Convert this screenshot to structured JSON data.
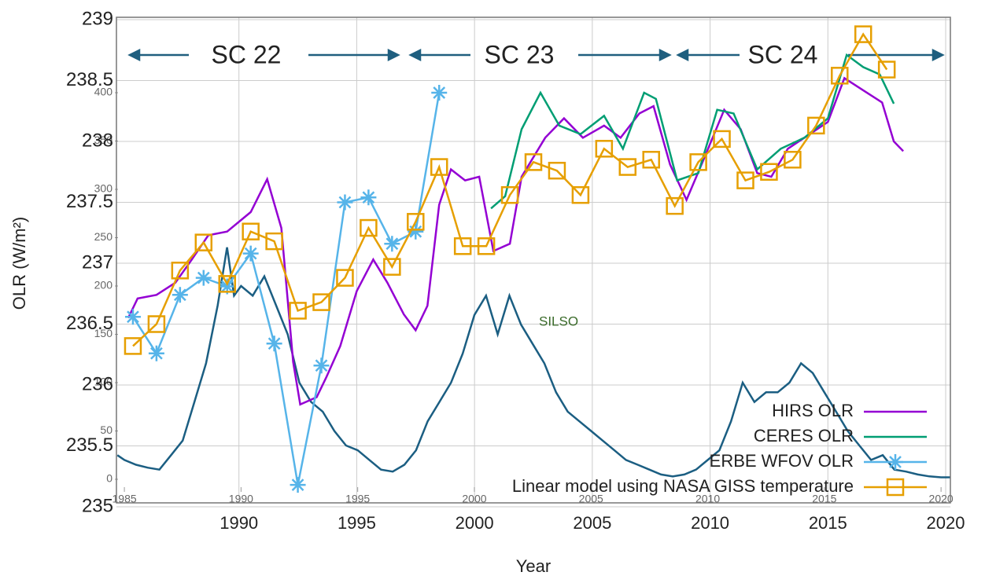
{
  "chart_data": [
    {
      "type": "line",
      "x_label": "Year",
      "y_label": "OLR (W/m²)",
      "xlim": [
        1984.8,
        2020.2
      ],
      "xticks": [
        1990,
        1995,
        2000,
        2005,
        2010,
        2015,
        2020
      ],
      "ylim": [
        235,
        239
      ],
      "yticks": [
        235,
        235.5,
        236,
        236.5,
        237,
        237.5,
        238,
        238.5,
        239
      ],
      "grid": true,
      "legend": "lower right",
      "annotations": [
        "SC 22",
        "SC 23",
        "SC 24"
      ],
      "series": [
        {
          "name": "HIRS OLR",
          "color": "#9400d3",
          "marker": "none",
          "x": [
            1985.3,
            1985.7,
            1986.5,
            1987.3,
            1988,
            1988.7,
            1989.5,
            1990.5,
            1991.2,
            1991.8,
            1992.3,
            1992.6,
            1993.3,
            1993.7,
            1994.3,
            1995,
            1995.7,
            1996.3,
            1997,
            1997.5,
            1998,
            1998.5,
            1999,
            1999.6,
            2000.2,
            2000.8,
            2001.5,
            2002,
            2003,
            2003.8,
            2004.6,
            2005.5,
            2006.2,
            2007,
            2007.6,
            2008.3,
            2009,
            2009.7,
            2010.6,
            2011.3,
            2012,
            2012.6,
            2013.3,
            2014,
            2015,
            2015.7,
            2016.5,
            2017.3,
            2017.8,
            2018.2
          ],
          "values": [
            236.55,
            236.71,
            236.74,
            236.84,
            237.03,
            237.23,
            237.26,
            237.42,
            237.69,
            237.29,
            236.19,
            235.84,
            235.9,
            236.06,
            236.32,
            236.77,
            237.03,
            236.84,
            236.58,
            236.45,
            236.65,
            237.48,
            237.77,
            237.68,
            237.71,
            237.1,
            237.16,
            237.71,
            238.03,
            238.19,
            238.03,
            238.13,
            238.03,
            238.23,
            238.29,
            237.81,
            237.52,
            237.84,
            238.26,
            238.1,
            237.74,
            237.71,
            237.94,
            238.03,
            238.16,
            238.52,
            238.42,
            238.32,
            238.0,
            237.92
          ]
        },
        {
          "name": "CERES OLR",
          "color": "#009e73",
          "marker": "none",
          "x": [
            2000.7,
            2001.3,
            2002,
            2002.8,
            2003.6,
            2004.5,
            2005.5,
            2006.3,
            2007.2,
            2007.7,
            2008.6,
            2009.5,
            2010.3,
            2011,
            2012,
            2013,
            2014,
            2015,
            2015.8,
            2016.5,
            2017.2,
            2017.8
          ],
          "values": [
            237.45,
            237.55,
            238.1,
            238.4,
            238.13,
            238.06,
            238.21,
            237.94,
            238.4,
            238.35,
            237.68,
            237.74,
            238.26,
            238.23,
            237.77,
            237.94,
            238.03,
            238.19,
            238.71,
            238.61,
            238.55,
            238.31
          ]
        },
        {
          "name": "ERBE WFOV OLR",
          "color": "#56b4e9",
          "marker": "star",
          "x": [
            1985.5,
            1986.5,
            1987.5,
            1988.5,
            1989.5,
            1990.5,
            1991.5,
            1992.5,
            1993.5,
            1994.5,
            1995.5,
            1996.5,
            1997.5,
            1998.5
          ],
          "values": [
            236.56,
            236.26,
            236.74,
            236.88,
            236.81,
            237.08,
            236.34,
            235.18,
            236.16,
            237.5,
            237.54,
            237.16,
            237.26,
            238.4
          ]
        },
        {
          "name": "Linear model using NASA GISS temperature",
          "color": "#e69f00",
          "marker": "square",
          "x": [
            1985.5,
            1986.5,
            1987.5,
            1988.5,
            1989.5,
            1990.5,
            1991.5,
            1992.5,
            1993.5,
            1994.5,
            1995.5,
            1996.5,
            1997.5,
            1998.5,
            1999.5,
            2000.5,
            2001.5,
            2002.5,
            2003.5,
            2004.5,
            2005.5,
            2006.5,
            2007.5,
            2008.5,
            2009.5,
            2010.5,
            2011.5,
            2012.5,
            2013.5,
            2014.5,
            2015.5,
            2016.5,
            2017.5
          ],
          "values": [
            236.32,
            236.5,
            236.94,
            237.17,
            236.83,
            237.26,
            237.18,
            236.61,
            236.68,
            236.88,
            237.29,
            236.97,
            237.34,
            237.79,
            237.14,
            237.14,
            237.56,
            237.83,
            237.76,
            237.56,
            237.94,
            237.79,
            237.85,
            237.47,
            237.83,
            238.02,
            237.68,
            237.75,
            237.85,
            238.13,
            238.54,
            238.88,
            238.59
          ]
        }
      ]
    },
    {
      "type": "line",
      "annotation": "SILSO",
      "color": "#1b5e82",
      "xlim": [
        1984.66,
        2020.4
      ],
      "xticks": [
        1985,
        1990,
        1995,
        2000,
        2005,
        2010,
        2015,
        2020
      ],
      "ylim": [
        0,
        400
      ],
      "yticks": [
        0,
        50,
        100,
        150,
        200,
        250,
        300,
        350,
        400
      ],
      "x": [
        1984.7,
        1985,
        1985.5,
        1986,
        1986.5,
        1987,
        1987.5,
        1988,
        1988.5,
        1989,
        1989.4,
        1989.7,
        1990,
        1990.5,
        1991,
        1991.5,
        1992,
        1992.5,
        1993,
        1993.5,
        1994,
        1994.5,
        1995,
        1995.5,
        1996,
        1996.5,
        1997,
        1997.5,
        1998,
        1998.5,
        1999,
        1999.5,
        2000,
        2000.5,
        2001,
        2001.5,
        2002,
        2002.5,
        2003,
        2003.5,
        2004,
        2004.5,
        2005,
        2005.5,
        2006,
        2006.5,
        2007,
        2007.5,
        2008,
        2008.5,
        2009,
        2009.5,
        2010,
        2010.5,
        2011,
        2011.5,
        2012,
        2012.5,
        2013,
        2013.5,
        2014,
        2014.5,
        2015,
        2015.5,
        2016,
        2016.5,
        2017,
        2017.5,
        2018,
        2018.5,
        2019,
        2019.5,
        2020,
        2020.4
      ],
      "values": [
        25,
        20,
        15,
        12,
        10,
        25,
        40,
        80,
        120,
        180,
        240,
        190,
        200,
        190,
        210,
        180,
        150,
        100,
        80,
        70,
        50,
        35,
        30,
        20,
        10,
        8,
        15,
        30,
        60,
        80,
        100,
        130,
        170,
        190,
        150,
        190,
        160,
        140,
        120,
        90,
        70,
        60,
        50,
        40,
        30,
        20,
        15,
        10,
        5,
        3,
        5,
        10,
        20,
        30,
        60,
        100,
        80,
        90,
        90,
        100,
        120,
        110,
        90,
        70,
        50,
        35,
        20,
        25,
        10,
        8,
        5,
        3,
        2,
        2
      ]
    }
  ]
}
